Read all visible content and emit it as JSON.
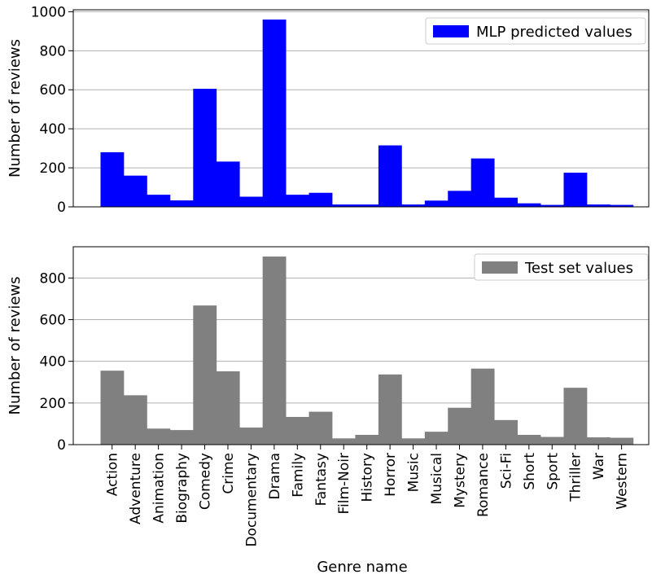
{
  "chart_data": [
    {
      "type": "bar",
      "categories": [
        "Action",
        "Adventure",
        "Animation",
        "Biography",
        "Comedy",
        "Crime",
        "Documentary",
        "Drama",
        "Family",
        "Fantasy",
        "Film-Noir",
        "History",
        "Horror",
        "Music",
        "Musical",
        "Mystery",
        "Romance",
        "Sci-Fi",
        "Short",
        "Sport",
        "Thriller",
        "War",
        "Western"
      ],
      "series": [
        {
          "name": "MLP predicted values",
          "color": "#0000ff",
          "values": [
            280,
            160,
            62,
            33,
            605,
            232,
            52,
            960,
            62,
            72,
            12,
            12,
            315,
            12,
            32,
            82,
            248,
            47,
            18,
            10,
            175,
            12,
            10
          ]
        }
      ],
      "ylabel": "Number of reviews",
      "ylim": [
        0,
        1010
      ],
      "yticks": [
        0,
        200,
        400,
        600,
        800,
        1000
      ],
      "grid": "y",
      "legend": "top-right"
    },
    {
      "type": "bar",
      "categories": [
        "Action",
        "Adventure",
        "Animation",
        "Biography",
        "Comedy",
        "Crime",
        "Documentary",
        "Drama",
        "Family",
        "Fantasy",
        "Film-Noir",
        "History",
        "Horror",
        "Music",
        "Musical",
        "Mystery",
        "Romance",
        "Sci-Fi",
        "Short",
        "Sport",
        "Thriller",
        "War",
        "Western"
      ],
      "series": [
        {
          "name": "Test set values",
          "color": "#808080",
          "values": [
            355,
            237,
            77,
            70,
            668,
            352,
            82,
            903,
            133,
            158,
            30,
            47,
            337,
            30,
            62,
            177,
            365,
            118,
            47,
            37,
            273,
            35,
            33
          ]
        }
      ],
      "xlabel": "Genre name",
      "ylabel": "Number of reviews",
      "ylim": [
        0,
        950
      ],
      "yticks": [
        0,
        200,
        400,
        600,
        800
      ],
      "grid": "y",
      "legend": "top-right"
    }
  ]
}
